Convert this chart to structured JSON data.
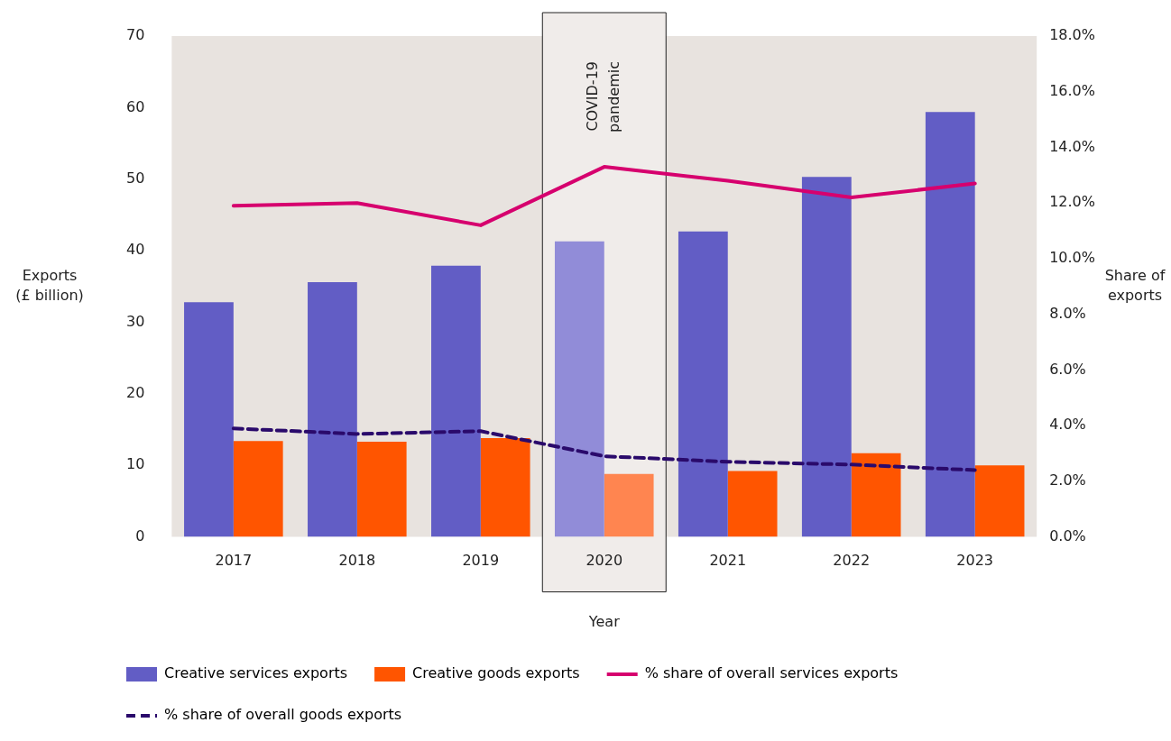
{
  "chart_data": {
    "type": "bar",
    "xlabel": "Year",
    "ylabel": "Exports\n(£ billion)",
    "y2label": "Share of\nexports",
    "categories": [
      "2017",
      "2018",
      "2019",
      "2020",
      "2021",
      "2022",
      "2023"
    ],
    "series": [
      {
        "name": "Creative services exports",
        "color": "#625dc5",
        "colors": [
          "#625dc5",
          "#625dc5",
          "#625dc5",
          "#918cd8",
          "#625dc5",
          "#625dc5",
          "#625dc5"
        ],
        "values": [
          32.8,
          35.6,
          37.9,
          41.3,
          42.7,
          50.3,
          59.4
        ]
      },
      {
        "name": "Creative goods exports",
        "color": "#ff5500",
        "colors": [
          "#ff5500",
          "#ff5500",
          "#ff5500",
          "#ff8550",
          "#ff5500",
          "#ff5500",
          "#ff5500"
        ],
        "values": [
          13.4,
          13.3,
          13.8,
          8.8,
          9.2,
          11.7,
          10.0
        ]
      },
      {
        "name": "% share of overall services exports",
        "type": "line",
        "axis": "y2",
        "color": "#d6006e",
        "line_style": "solid",
        "values": [
          11.9,
          12.0,
          11.2,
          13.3,
          12.8,
          12.2,
          12.7
        ]
      },
      {
        "name": "% share of overall goods exports",
        "type": "line",
        "axis": "y2",
        "color": "#2a0a6b",
        "line_style": "dashed",
        "values": [
          3.9,
          3.7,
          3.8,
          2.9,
          2.7,
          2.6,
          2.4
        ]
      }
    ],
    "ylim": [
      0,
      70
    ],
    "yticks": [
      0,
      10,
      20,
      30,
      40,
      50,
      60,
      70
    ],
    "y2lim": [
      0,
      18
    ],
    "y2ticks": [
      {
        "value": 0,
        "label": "0.0%"
      },
      {
        "value": 2,
        "label": "2.0%"
      },
      {
        "value": 4,
        "label": "4.0%"
      },
      {
        "value": 6,
        "label": "6.0%"
      },
      {
        "value": 8,
        "label": "8.0%"
      },
      {
        "value": 10,
        "label": "10.0%"
      },
      {
        "value": 12,
        "label": "12.0%"
      },
      {
        "value": 14,
        "label": "14.0%"
      },
      {
        "value": 16,
        "label": "16.0%"
      },
      {
        "value": 18,
        "label": "18.0%"
      }
    ],
    "bands": [
      {
        "axis": "x",
        "from": "2020",
        "to": "2020",
        "label": "COVID-19 pandemic",
        "color": "#f0ecea"
      }
    ],
    "grid": false,
    "legend": "bottom",
    "marker": "none"
  }
}
